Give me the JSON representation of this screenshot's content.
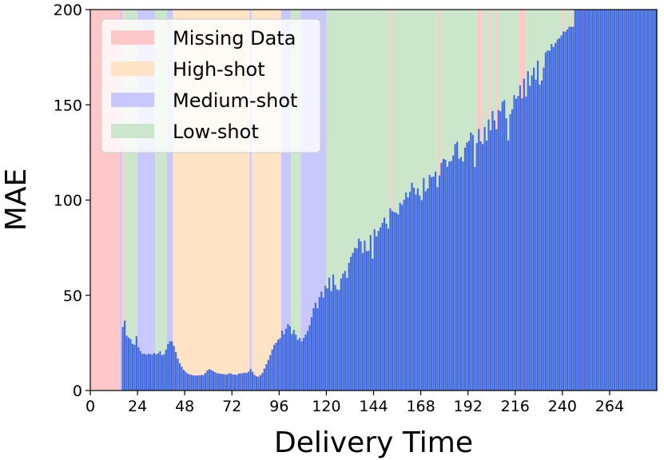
{
  "chart_data": {
    "type": "bar",
    "title": "",
    "xlabel": "Delivery Time",
    "ylabel": "MAE",
    "xlim": [
      0,
      288
    ],
    "ylim": [
      0,
      200
    ],
    "xticks": [
      0,
      24,
      48,
      72,
      96,
      120,
      144,
      168,
      192,
      216,
      240,
      264
    ],
    "yticks": [
      0,
      50,
      100,
      150,
      200
    ],
    "grid": false,
    "legend_position": "top-left",
    "bar_color": "#4169e1",
    "legend": [
      {
        "label": "Missing Data",
        "color": "#ffc8c8"
      },
      {
        "label": "High-shot",
        "color": "#ffe3c4"
      },
      {
        "label": "Medium-shot",
        "color": "#c8c8ff"
      },
      {
        "label": "Low-shot",
        "color": "#cce6cc"
      }
    ],
    "regions": [
      {
        "category": "Missing Data",
        "x": [
          0,
          15
        ]
      },
      {
        "category": "Medium-shot",
        "x": [
          15,
          16
        ]
      },
      {
        "category": "Missing Data",
        "x": [
          16,
          17
        ]
      },
      {
        "category": "Low-shot",
        "x": [
          17,
          24
        ]
      },
      {
        "category": "Medium-shot",
        "x": [
          24,
          33
        ]
      },
      {
        "category": "Low-shot",
        "x": [
          33,
          39
        ]
      },
      {
        "category": "Medium-shot",
        "x": [
          39,
          42
        ]
      },
      {
        "category": "High-shot",
        "x": [
          42,
          81
        ]
      },
      {
        "category": "Medium-shot",
        "x": [
          81,
          82
        ]
      },
      {
        "category": "High-shot",
        "x": [
          82,
          97
        ]
      },
      {
        "category": "Medium-shot",
        "x": [
          97,
          102
        ]
      },
      {
        "category": "Low-shot",
        "x": [
          102,
          107
        ]
      },
      {
        "category": "Medium-shot",
        "x": [
          107,
          120
        ]
      },
      {
        "category": "Low-shot",
        "x": [
          120,
          153
        ]
      },
      {
        "category": "Missing Data",
        "x": [
          153,
          154
        ]
      },
      {
        "category": "Low-shot",
        "x": [
          154,
          177
        ]
      },
      {
        "category": "Missing Data",
        "x": [
          177,
          178
        ]
      },
      {
        "category": "Low-shot",
        "x": [
          178,
          197
        ]
      },
      {
        "category": "Missing Data",
        "x": [
          197,
          199
        ]
      },
      {
        "category": "Low-shot",
        "x": [
          199,
          202
        ]
      },
      {
        "category": "Missing Data",
        "x": [
          202,
          203
        ]
      },
      {
        "category": "Low-shot",
        "x": [
          203,
          206
        ]
      },
      {
        "category": "Missing Data",
        "x": [
          206,
          207
        ]
      },
      {
        "category": "Low-shot",
        "x": [
          207,
          218
        ]
      },
      {
        "category": "Missing Data",
        "x": [
          218,
          221
        ]
      },
      {
        "category": "Low-shot",
        "x": [
          221,
          240
        ]
      },
      {
        "category": "Missing Data",
        "x": [
          240,
          241
        ]
      },
      {
        "category": "Low-shot",
        "x": [
          241,
          244
        ]
      },
      {
        "category": "Missing Data",
        "x": [
          244,
          245
        ]
      },
      {
        "category": "Low-shot",
        "x": [
          245,
          248
        ]
      },
      {
        "category": "Missing Data",
        "x": [
          248,
          252
        ]
      },
      {
        "category": "Low-shot",
        "x": [
          252,
          264
        ]
      },
      {
        "category": "Missing Data",
        "x": [
          264,
          266
        ]
      },
      {
        "category": "Low-shot",
        "x": [
          266,
          267
        ]
      },
      {
        "category": "Missing Data",
        "x": [
          267,
          271
        ]
      },
      {
        "category": "Low-shot",
        "x": [
          271,
          272
        ]
      },
      {
        "category": "Missing Data",
        "x": [
          272,
          274
        ]
      },
      {
        "category": "Low-shot",
        "x": [
          274,
          288
        ]
      }
    ],
    "missing_bars": [
      15,
      153,
      177,
      197,
      198,
      202,
      206,
      218,
      219,
      220,
      240,
      244,
      248,
      249,
      250,
      251,
      264,
      265,
      267,
      268,
      269,
      270,
      272,
      273
    ],
    "bar_start": 16,
    "values": [
      33.4,
      36.7,
      28.8,
      27.8,
      27.0,
      24.5,
      24.0,
      28.5,
      22.7,
      20.7,
      19.2,
      19.3,
      18.7,
      19.3,
      19.1,
      18.8,
      19.7,
      19.0,
      19.5,
      20.6,
      18.6,
      19.0,
      21.5,
      24.3,
      25.9,
      25.8,
      23.4,
      20.1,
      16.8,
      14.3,
      12.5,
      10.9,
      9.8,
      8.9,
      8.5,
      8.2,
      7.9,
      7.9,
      7.9,
      8.0,
      8.1,
      8.1,
      9.2,
      10.6,
      11.2,
      10.8,
      10.2,
      9.6,
      9.1,
      8.9,
      8.8,
      8.6,
      8.5,
      8.3,
      9.0,
      8.9,
      8.4,
      8.4,
      8.2,
      8.9,
      9.0,
      9.0,
      9.4,
      9.2,
      9.9,
      11.3,
      9.9,
      8.2,
      7.4,
      7.3,
      8.1,
      9.3,
      11.5,
      13.8,
      16.1,
      18.6,
      21.5,
      24.0,
      25.1,
      26.7,
      27.5,
      31.4,
      29.5,
      32.4,
      34.8,
      33.7,
      29.7,
      31.8,
      29.3,
      26.6,
      27.6,
      25.8,
      27.6,
      29.4,
      31.3,
      34.2,
      38.5,
      43.2,
      46.1,
      43.3,
      49.0,
      51.9,
      48.8,
      55.0,
      53.6,
      59.3,
      52.2,
      60.9,
      55.4,
      53.1,
      52.7,
      58.8,
      61.4,
      62.8,
      59.1,
      67.0,
      70.2,
      72.3,
      74.9,
      74.6,
      79.8,
      78.3,
      72.2,
      78.7,
      73.2,
      73.4,
      81.7,
      69.3,
      84.7,
      80.9,
      83.8,
      85.7,
      88.0,
      90.8,
      87.6,
      85.0,
      95.6,
      94.2,
      93.7,
      93.4,
      92.5,
      98.6,
      97.5,
      100.2,
      103.9,
      101.4,
      104.3,
      109.1,
      106.5,
      103.0,
      106.2,
      102.4,
      99.9,
      111.5,
      104.6,
      106.1,
      113.2,
      112.0,
      112.3,
      114.9,
      106.8,
      112.9,
      119.5,
      121.6,
      121.2,
      117.5,
      120.2,
      120.5,
      123.4,
      129.4,
      130.6,
      121.6,
      122.6,
      120.3,
      127.5,
      130.2,
      131.1,
      135.5,
      134.2,
      117.4,
      129.9,
      137.3,
      130.8,
      129.4,
      138.4,
      131.2,
      142.3,
      136.6,
      146.8,
      141.8,
      137.2,
      147.3,
      146.6,
      151.6,
      152.4,
      142.9,
      131.3,
      145.1,
      147.6,
      155.1,
      153.2,
      154.7,
      160.2,
      153.4,
      163.7,
      154.3,
      167.6,
      160.0,
      165.4,
      169.6,
      163.2,
      173.2,
      160.6,
      162.8,
      169.5,
      177.5,
      178.5,
      178.4,
      181.9,
      180.4,
      182.5,
      184.3,
      185.0,
      186.4,
      188.5,
      188.4,
      189.5,
      191.0,
      190.9,
      191.0,
      200.0,
      200.0,
      200.0,
      200.0,
      200.0,
      200.0,
      200.0,
      200.0,
      200.0,
      200.0,
      200.0,
      200.0,
      200.0,
      200.0,
      200.0,
      200.0,
      200.0,
      200.0,
      200.0,
      200.0,
      200.0,
      200.0,
      200.0,
      200.0,
      200.0,
      200.0,
      200.0,
      200.0,
      200.0,
      200.0,
      200.0,
      200.0,
      200.0,
      200.0,
      200.0,
      200.0,
      200.0,
      200.0,
      200.0,
      200.0,
      200.0,
      200.0,
      200.0,
      200.0,
      200.0,
      200.0,
      200.0,
      200.0,
      200.0,
      200.0,
      200.0,
      200.0,
      200.0,
      200.0,
      200.0,
      200.0,
      200.0,
      200.0
    ]
  }
}
